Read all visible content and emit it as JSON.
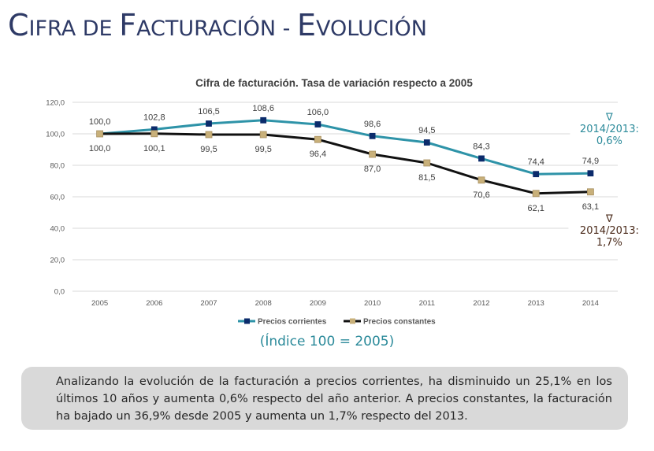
{
  "page": {
    "title_parts": [
      {
        "cap": "C",
        "rest": "IFRA DE "
      },
      {
        "cap": "F",
        "rest": "ACTURACIÓN - "
      },
      {
        "cap": "E",
        "rest": "VOLUCIÓN"
      }
    ],
    "index_note": "(Índice 100 = 2005)",
    "summary": "Analizando la evolución de la facturación a precios corrientes, ha disminuido un 25,1% en los últimos 10 años y aumenta 0,6% respecto del año anterior. A precios constantes, la facturación ha bajado un 36,9% desde 2005 y aumenta un 1,7% respecto del 2013."
  },
  "chart_data": {
    "type": "line",
    "title": "Cifra de facturación. Tasa de variación respecto a 2005",
    "xlabel": "",
    "ylabel": "",
    "categories": [
      "2005",
      "2006",
      "2007",
      "2008",
      "2009",
      "2010",
      "2011",
      "2012",
      "2013",
      "2014"
    ],
    "ylim": [
      0,
      120
    ],
    "yticks": [
      0,
      20,
      40,
      60,
      80,
      100,
      120
    ],
    "ytick_labels": [
      "0,0",
      "20,0",
      "40,0",
      "60,0",
      "80,0",
      "100,0",
      "120,0"
    ],
    "grid": true,
    "legend_position": "bottom",
    "series": [
      {
        "name": "Precios corrientes",
        "color": "#2e93a8",
        "marker_color": "#0b2b6b",
        "values": [
          100.0,
          102.8,
          106.5,
          108.6,
          106.0,
          98.6,
          94.5,
          84.3,
          74.4,
          74.9
        ],
        "labels": [
          "100,0",
          "102,8",
          "106,5",
          "108,6",
          "106,0",
          "98,6",
          "94,5",
          "84,3",
          "74,4",
          "74,9"
        ],
        "label_position": "above"
      },
      {
        "name": "Precios constantes",
        "color": "#111111",
        "marker_color": "#c8b07a",
        "values": [
          100.0,
          100.1,
          99.5,
          99.5,
          96.4,
          87.0,
          81.5,
          70.6,
          62.1,
          63.1
        ],
        "labels": [
          "100,0",
          "100,1",
          "99,5",
          "99,5",
          "96,4",
          "87,0",
          "81,5",
          "70,6",
          "62,1",
          "63,1"
        ],
        "label_position": "below"
      }
    ],
    "annotations": [
      {
        "series": "Precios corrientes",
        "symbol": "∇",
        "lines": [
          "2014/2013:",
          "0,6%"
        ],
        "color": "#2b8a9a"
      },
      {
        "series": "Precios constantes",
        "symbol": "∇",
        "lines": [
          "2014/2013:",
          "1,7%"
        ],
        "color": "#4a2a1a"
      }
    ]
  }
}
